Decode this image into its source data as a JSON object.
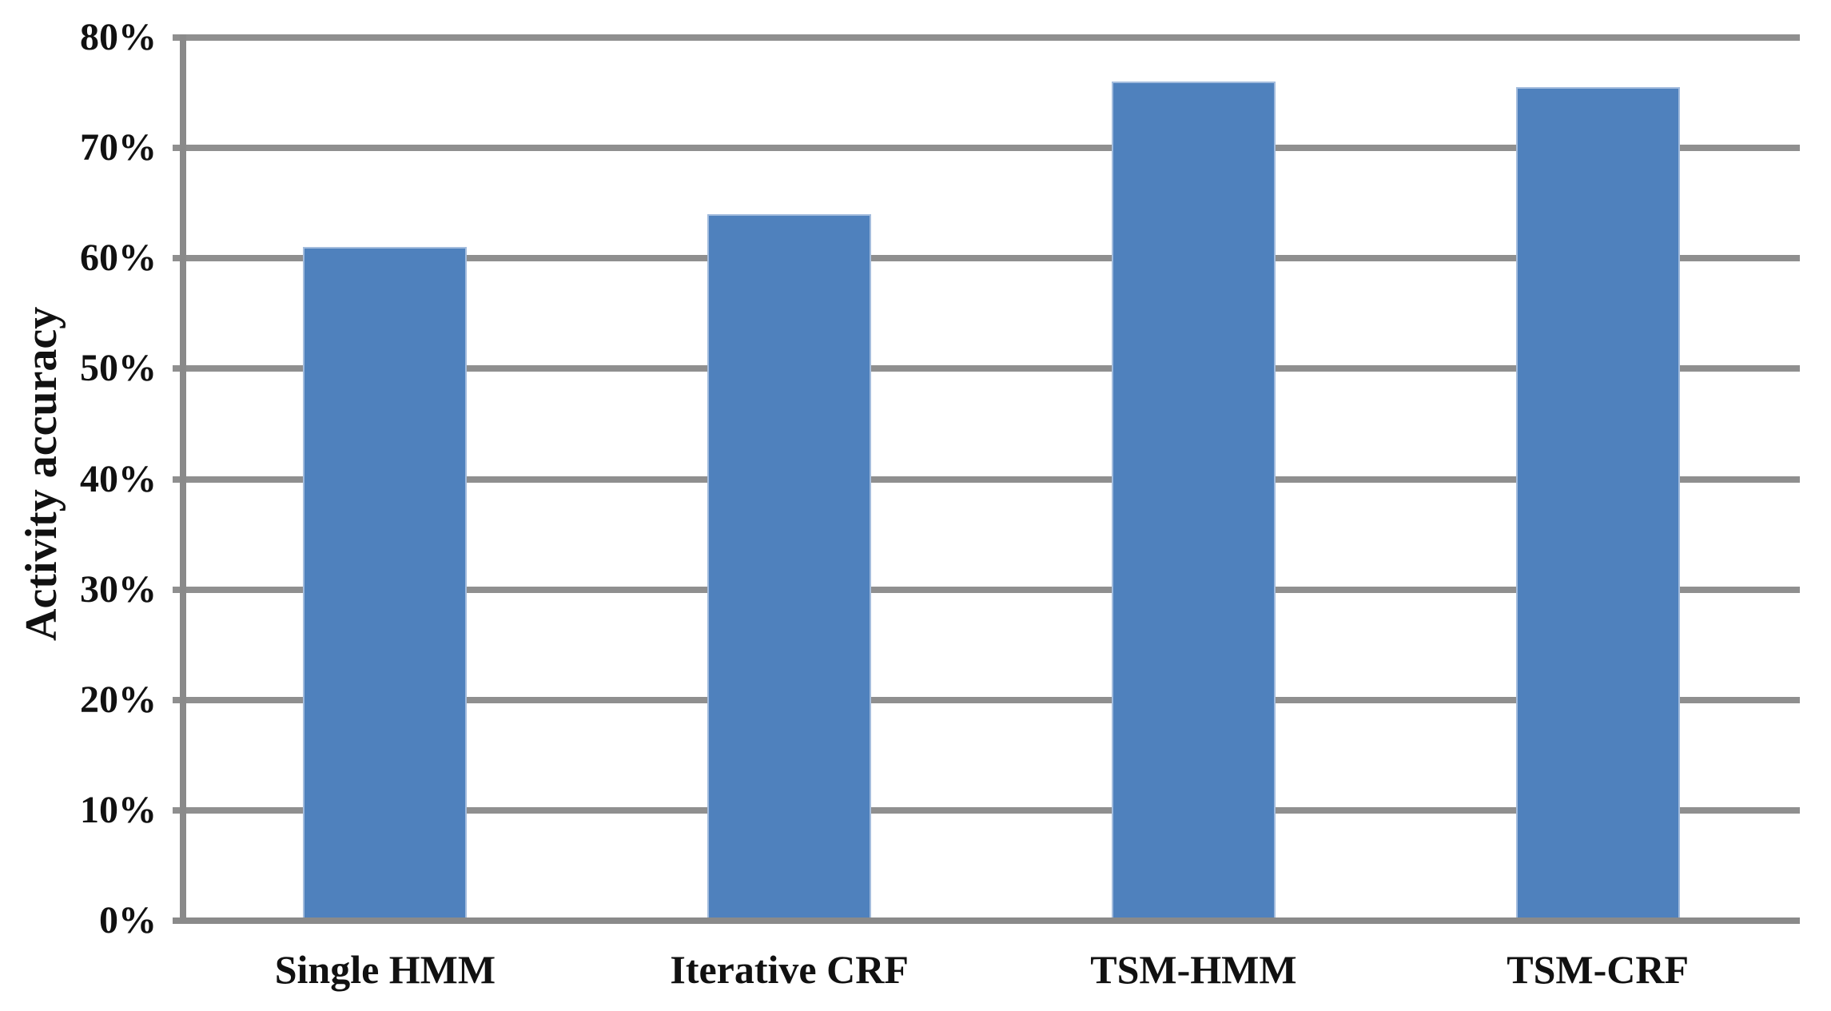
{
  "figure": {
    "background": "#ffffff",
    "text_color": "#111111"
  },
  "chart_data": {
    "type": "bar",
    "title": "",
    "categories": [
      "Single HMM",
      "Iterative CRF",
      "TSM-HMM",
      "TSM-CRF"
    ],
    "values": [
      61,
      64,
      76,
      75.5
    ],
    "unit": "%",
    "xlabel": "",
    "ylabel": "Activity accuracy",
    "ylim": [
      0,
      80
    ],
    "ytick_step": 10,
    "ytick_labels": [
      "0%",
      "10%",
      "20%",
      "30%",
      "40%",
      "50%",
      "60%",
      "70%",
      "80%"
    ],
    "grid": true,
    "legend": false,
    "bar_color": "#4F81BD",
    "bar_edge_color": "#a3bcdd",
    "axis_color": "#8f8f8f"
  }
}
